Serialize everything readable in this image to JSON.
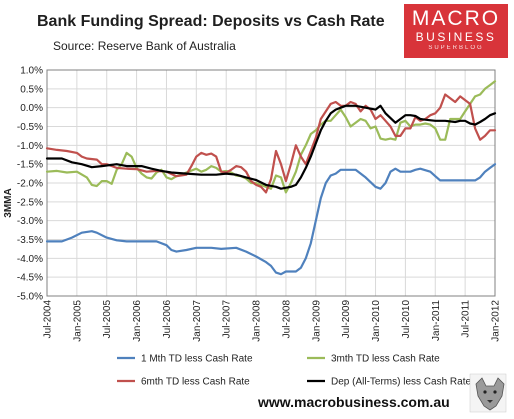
{
  "header": {
    "title": "Bank Funding Spread: Deposits vs Cash Rate",
    "source": "Source: Reserve Bank of Australia"
  },
  "logo": {
    "line1": "MACRO",
    "line2": "BUSINESS",
    "line3": "SUPERBLOG",
    "color": "#d8343a"
  },
  "footer": {
    "url": "www.macrobusiness.com.au"
  },
  "chart_data": {
    "type": "line",
    "ylabel": "3MMA",
    "xlabel": "",
    "ylim": [
      -5,
      1
    ],
    "yticks": [
      1,
      0.5,
      0,
      -0.5,
      -1,
      -1.5,
      -2,
      -2.5,
      -3,
      -3.5,
      -4,
      -4.5,
      -5
    ],
    "ytick_labels": [
      "1.0%",
      "0.5%",
      "0.0%",
      "-0.5%",
      "-1.0%",
      "-1.5%",
      "-2.0%",
      "-2.5%",
      "-3.0%",
      "-3.5%",
      "-4.0%",
      "-4.5%",
      "-5.0%"
    ],
    "xlim": [
      0,
      90
    ],
    "xticks": [
      0,
      6,
      12,
      18,
      24,
      30,
      36,
      42,
      48,
      54,
      60,
      66,
      72,
      78,
      84,
      90
    ],
    "xtick_labels": [
      "Jul-2004",
      "Jan-2005",
      "Jul-2005",
      "Jan-2006",
      "Jul-2006",
      "Jan-2007",
      "Jul-2007",
      "Jan-2008",
      "Jul-2008",
      "Jan-2009",
      "Jul-2009",
      "Jan-2010",
      "Jul-2010",
      "Jan-2011",
      "Jul-2011",
      "Jan-2012"
    ],
    "grid": true,
    "legend": "bottom",
    "series": [
      {
        "name": "1 Mth TD less Cash Rate",
        "color": "#4f81bd",
        "points": [
          [
            0,
            -3.55
          ],
          [
            3,
            -3.55
          ],
          [
            5,
            -3.45
          ],
          [
            7,
            -3.32
          ],
          [
            9,
            -3.28
          ],
          [
            10,
            -3.32
          ],
          [
            12,
            -3.45
          ],
          [
            14,
            -3.52
          ],
          [
            16,
            -3.55
          ],
          [
            22,
            -3.55
          ],
          [
            24,
            -3.65
          ],
          [
            25,
            -3.78
          ],
          [
            26,
            -3.82
          ],
          [
            28,
            -3.78
          ],
          [
            30,
            -3.72
          ],
          [
            33,
            -3.72
          ],
          [
            35,
            -3.75
          ],
          [
            38,
            -3.72
          ],
          [
            40,
            -3.82
          ],
          [
            42,
            -3.95
          ],
          [
            44,
            -4.1
          ],
          [
            45,
            -4.2
          ],
          [
            46,
            -4.38
          ],
          [
            47,
            -4.42
          ],
          [
            48,
            -4.35
          ],
          [
            50,
            -4.35
          ],
          [
            51,
            -4.25
          ],
          [
            52,
            -4.0
          ],
          [
            53,
            -3.6
          ],
          [
            54,
            -3.0
          ],
          [
            55,
            -2.4
          ],
          [
            56,
            -2.0
          ],
          [
            57,
            -1.8
          ],
          [
            58,
            -1.75
          ],
          [
            59,
            -1.65
          ],
          [
            62,
            -1.65
          ],
          [
            64,
            -1.85
          ],
          [
            66,
            -2.1
          ],
          [
            67,
            -2.15
          ],
          [
            68,
            -2.0
          ],
          [
            69,
            -1.7
          ],
          [
            70,
            -1.62
          ],
          [
            71,
            -1.7
          ],
          [
            73,
            -1.7
          ],
          [
            74,
            -1.65
          ],
          [
            75,
            -1.62
          ],
          [
            77,
            -1.7
          ],
          [
            78,
            -1.82
          ],
          [
            79,
            -1.93
          ],
          [
            86,
            -1.93
          ],
          [
            87,
            -1.85
          ],
          [
            88,
            -1.7
          ],
          [
            89,
            -1.6
          ],
          [
            90,
            -1.5
          ]
        ]
      },
      {
        "name": "3mth TD less Cash Rate",
        "color": "#9bbb59",
        "points": [
          [
            0,
            -1.7
          ],
          [
            2,
            -1.68
          ],
          [
            4,
            -1.72
          ],
          [
            6,
            -1.7
          ],
          [
            8,
            -1.85
          ],
          [
            9,
            -2.05
          ],
          [
            10,
            -2.08
          ],
          [
            11,
            -1.95
          ],
          [
            12,
            -1.95
          ],
          [
            13,
            -2.02
          ],
          [
            14,
            -1.65
          ],
          [
            15,
            -1.5
          ],
          [
            16,
            -1.2
          ],
          [
            17,
            -1.3
          ],
          [
            18,
            -1.6
          ],
          [
            19,
            -1.75
          ],
          [
            20,
            -1.85
          ],
          [
            21,
            -1.88
          ],
          [
            22,
            -1.72
          ],
          [
            23,
            -1.65
          ],
          [
            24,
            -1.85
          ],
          [
            25,
            -1.9
          ],
          [
            26,
            -1.82
          ],
          [
            27,
            -1.78
          ],
          [
            28,
            -1.72
          ],
          [
            30,
            -1.62
          ],
          [
            31,
            -1.7
          ],
          [
            32,
            -1.65
          ],
          [
            33,
            -1.55
          ],
          [
            34,
            -1.6
          ],
          [
            35,
            -1.7
          ],
          [
            36,
            -1.68
          ],
          [
            37,
            -1.72
          ],
          [
            38,
            -1.8
          ],
          [
            39,
            -1.82
          ],
          [
            40,
            -1.88
          ],
          [
            41,
            -2.0
          ],
          [
            42,
            -2.0
          ],
          [
            43,
            -2.05
          ],
          [
            44,
            -2.1
          ],
          [
            45,
            -2.15
          ],
          [
            46,
            -1.8
          ],
          [
            47,
            -1.85
          ],
          [
            48,
            -2.25
          ],
          [
            49,
            -2.0
          ],
          [
            50,
            -1.7
          ],
          [
            51,
            -1.25
          ],
          [
            52,
            -1.0
          ],
          [
            53,
            -0.7
          ],
          [
            54,
            -0.6
          ],
          [
            55,
            -0.45
          ],
          [
            56,
            -0.35
          ],
          [
            57,
            -0.35
          ],
          [
            58,
            -0.2
          ],
          [
            59,
            -0.05
          ],
          [
            60,
            -0.25
          ],
          [
            61,
            -0.5
          ],
          [
            62,
            -0.4
          ],
          [
            63,
            -0.3
          ],
          [
            64,
            -0.35
          ],
          [
            65,
            -0.55
          ],
          [
            66,
            -0.5
          ],
          [
            67,
            -0.82
          ],
          [
            68,
            -0.85
          ],
          [
            69,
            -0.82
          ],
          [
            70,
            -0.85
          ],
          [
            71,
            -0.4
          ],
          [
            72,
            -0.35
          ],
          [
            73,
            -0.5
          ],
          [
            74,
            -0.45
          ],
          [
            75,
            -0.45
          ],
          [
            76,
            -0.42
          ],
          [
            77,
            -0.45
          ],
          [
            78,
            -0.55
          ],
          [
            79,
            -0.85
          ],
          [
            80,
            -0.85
          ],
          [
            81,
            -0.3
          ],
          [
            82,
            -0.3
          ],
          [
            83,
            -0.3
          ],
          [
            84,
            -0.1
          ],
          [
            85,
            0.1
          ],
          [
            86,
            0.3
          ],
          [
            87,
            0.35
          ],
          [
            88,
            0.5
          ],
          [
            89,
            0.6
          ],
          [
            90,
            0.7
          ]
        ]
      },
      {
        "name": "6mth TD less Cash Rate",
        "color": "#c0504d",
        "points": [
          [
            0,
            -1.08
          ],
          [
            2,
            -1.12
          ],
          [
            4,
            -1.15
          ],
          [
            6,
            -1.2
          ],
          [
            7,
            -1.3
          ],
          [
            8,
            -1.35
          ],
          [
            10,
            -1.38
          ],
          [
            11,
            -1.5
          ],
          [
            12,
            -1.5
          ],
          [
            14,
            -1.6
          ],
          [
            16,
            -1.62
          ],
          [
            18,
            -1.63
          ],
          [
            20,
            -1.7
          ],
          [
            22,
            -1.68
          ],
          [
            24,
            -1.7
          ],
          [
            26,
            -1.82
          ],
          [
            28,
            -1.78
          ],
          [
            29,
            -1.55
          ],
          [
            30,
            -1.3
          ],
          [
            31,
            -1.2
          ],
          [
            32,
            -1.25
          ],
          [
            33,
            -1.22
          ],
          [
            34,
            -1.3
          ],
          [
            35,
            -1.7
          ],
          [
            36,
            -1.72
          ],
          [
            37,
            -1.65
          ],
          [
            38,
            -1.55
          ],
          [
            39,
            -1.58
          ],
          [
            40,
            -1.7
          ],
          [
            41,
            -1.95
          ],
          [
            42,
            -2.05
          ],
          [
            43,
            -2.1
          ],
          [
            44,
            -2.25
          ],
          [
            45,
            -1.9
          ],
          [
            46,
            -1.15
          ],
          [
            47,
            -1.5
          ],
          [
            48,
            -1.95
          ],
          [
            49,
            -1.5
          ],
          [
            50,
            -1.0
          ],
          [
            51,
            -1.3
          ],
          [
            52,
            -1.5
          ],
          [
            53,
            -1.15
          ],
          [
            54,
            -0.8
          ],
          [
            55,
            -0.3
          ],
          [
            56,
            -0.1
          ],
          [
            57,
            0.1
          ],
          [
            58,
            0.15
          ],
          [
            59,
            0.05
          ],
          [
            60,
            0.05
          ],
          [
            61,
            0.15
          ],
          [
            62,
            0.1
          ],
          [
            63,
            -0.1
          ],
          [
            64,
            0.05
          ],
          [
            65,
            -0.05
          ],
          [
            66,
            -0.3
          ],
          [
            67,
            -0.2
          ],
          [
            68,
            -0.35
          ],
          [
            69,
            -0.5
          ],
          [
            70,
            -0.75
          ],
          [
            71,
            -0.75
          ],
          [
            72,
            -0.55
          ],
          [
            73,
            -0.55
          ],
          [
            74,
            -0.25
          ],
          [
            75,
            -0.35
          ],
          [
            76,
            -0.3
          ],
          [
            77,
            -0.2
          ],
          [
            78,
            -0.15
          ],
          [
            79,
            0.0
          ],
          [
            80,
            0.35
          ],
          [
            81,
            0.25
          ],
          [
            82,
            0.15
          ],
          [
            83,
            0.3
          ],
          [
            84,
            0.2
          ],
          [
            85,
            0.1
          ],
          [
            86,
            -0.55
          ],
          [
            87,
            -0.85
          ],
          [
            88,
            -0.75
          ],
          [
            89,
            -0.6
          ],
          [
            90,
            -0.6
          ]
        ]
      },
      {
        "name": "Dep (All-Terms) less Cash Rate",
        "color": "#000000",
        "points": [
          [
            0,
            -1.35
          ],
          [
            3,
            -1.35
          ],
          [
            5,
            -1.45
          ],
          [
            7,
            -1.5
          ],
          [
            9,
            -1.58
          ],
          [
            11,
            -1.55
          ],
          [
            14,
            -1.5
          ],
          [
            16,
            -1.55
          ],
          [
            19,
            -1.55
          ],
          [
            21,
            -1.62
          ],
          [
            23,
            -1.68
          ],
          [
            25,
            -1.72
          ],
          [
            28,
            -1.75
          ],
          [
            31,
            -1.78
          ],
          [
            34,
            -1.78
          ],
          [
            36,
            -1.75
          ],
          [
            38,
            -1.78
          ],
          [
            40,
            -1.85
          ],
          [
            42,
            -1.92
          ],
          [
            44,
            -2.05
          ],
          [
            46,
            -2.1
          ],
          [
            47,
            -2.15
          ],
          [
            49,
            -2.1
          ],
          [
            50,
            -2.05
          ],
          [
            51,
            -1.85
          ],
          [
            52,
            -1.6
          ],
          [
            53,
            -1.3
          ],
          [
            54,
            -0.95
          ],
          [
            55,
            -0.6
          ],
          [
            56,
            -0.35
          ],
          [
            57,
            -0.15
          ],
          [
            58,
            -0.05
          ],
          [
            59,
            0.0
          ],
          [
            60,
            0.05
          ],
          [
            62,
            0.05
          ],
          [
            64,
            0.0
          ],
          [
            66,
            -0.05
          ],
          [
            67,
            0.05
          ],
          [
            68,
            -0.15
          ],
          [
            70,
            -0.4
          ],
          [
            71,
            -0.3
          ],
          [
            72,
            -0.2
          ],
          [
            73,
            -0.2
          ],
          [
            74,
            -0.22
          ],
          [
            75,
            -0.3
          ],
          [
            76,
            -0.32
          ],
          [
            78,
            -0.35
          ],
          [
            80,
            -0.35
          ],
          [
            82,
            -0.38
          ],
          [
            83,
            -0.35
          ],
          [
            84,
            -0.35
          ],
          [
            85,
            -0.42
          ],
          [
            86,
            -0.45
          ],
          [
            87,
            -0.38
          ],
          [
            88,
            -0.3
          ],
          [
            89,
            -0.2
          ],
          [
            90,
            -0.15
          ]
        ]
      }
    ]
  }
}
